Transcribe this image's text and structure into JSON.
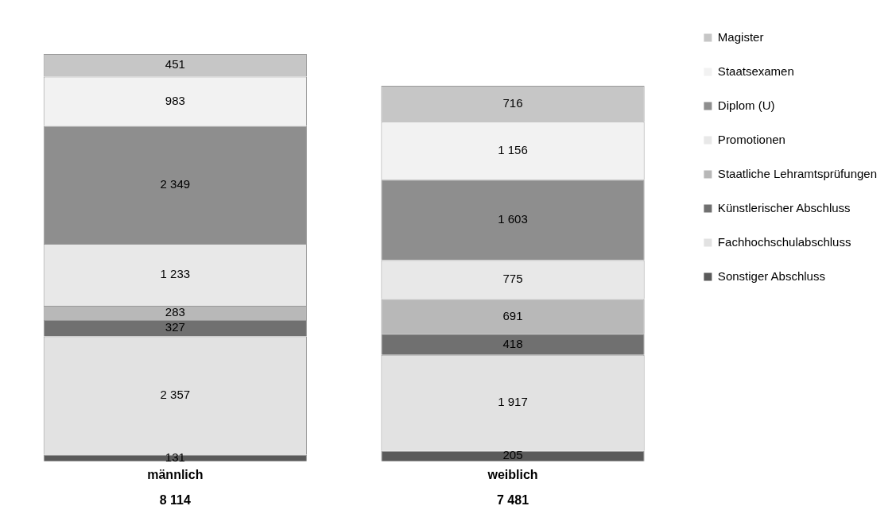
{
  "chart_data": {
    "type": "bar",
    "stacked": true,
    "categories": [
      "männlich",
      "weiblich"
    ],
    "series": [
      {
        "name": "Sonstiger Abschluss",
        "color": "#5a5a5a",
        "values": [
          131,
          205
        ],
        "value_labels": [
          "131",
          "205"
        ]
      },
      {
        "name": "Fachhochschulabschluss",
        "color": "#e2e2e2",
        "values": [
          2357,
          1917
        ],
        "value_labels": [
          "2 357",
          "1 917"
        ]
      },
      {
        "name": "Künstlerischer Abschluss",
        "color": "#707070",
        "values": [
          327,
          418
        ],
        "value_labels": [
          "327",
          "418"
        ]
      },
      {
        "name": "Staatliche Lehramtsprüfungen",
        "color": "#b8b8b8",
        "values": [
          283,
          691
        ],
        "value_labels": [
          "283",
          "691"
        ]
      },
      {
        "name": "Promotionen",
        "color": "#e8e8e8",
        "values": [
          1233,
          775
        ],
        "value_labels": [
          "1 233",
          "775"
        ]
      },
      {
        "name": "Diplom (U)",
        "color": "#8e8e8e",
        "values": [
          2349,
          1603
        ],
        "value_labels": [
          "2 349",
          "1 603"
        ]
      },
      {
        "name": "Staatsexamen",
        "color": "#f2f2f2",
        "values": [
          983,
          1156
        ],
        "value_labels": [
          "983",
          "1 156"
        ]
      },
      {
        "name": "Magister",
        "color": "#c6c6c6",
        "values": [
          451,
          716
        ],
        "value_labels": [
          "451",
          "716"
        ]
      }
    ],
    "totals": [
      "8 114",
      "7 481"
    ],
    "legend": "right",
    "grid": false
  }
}
